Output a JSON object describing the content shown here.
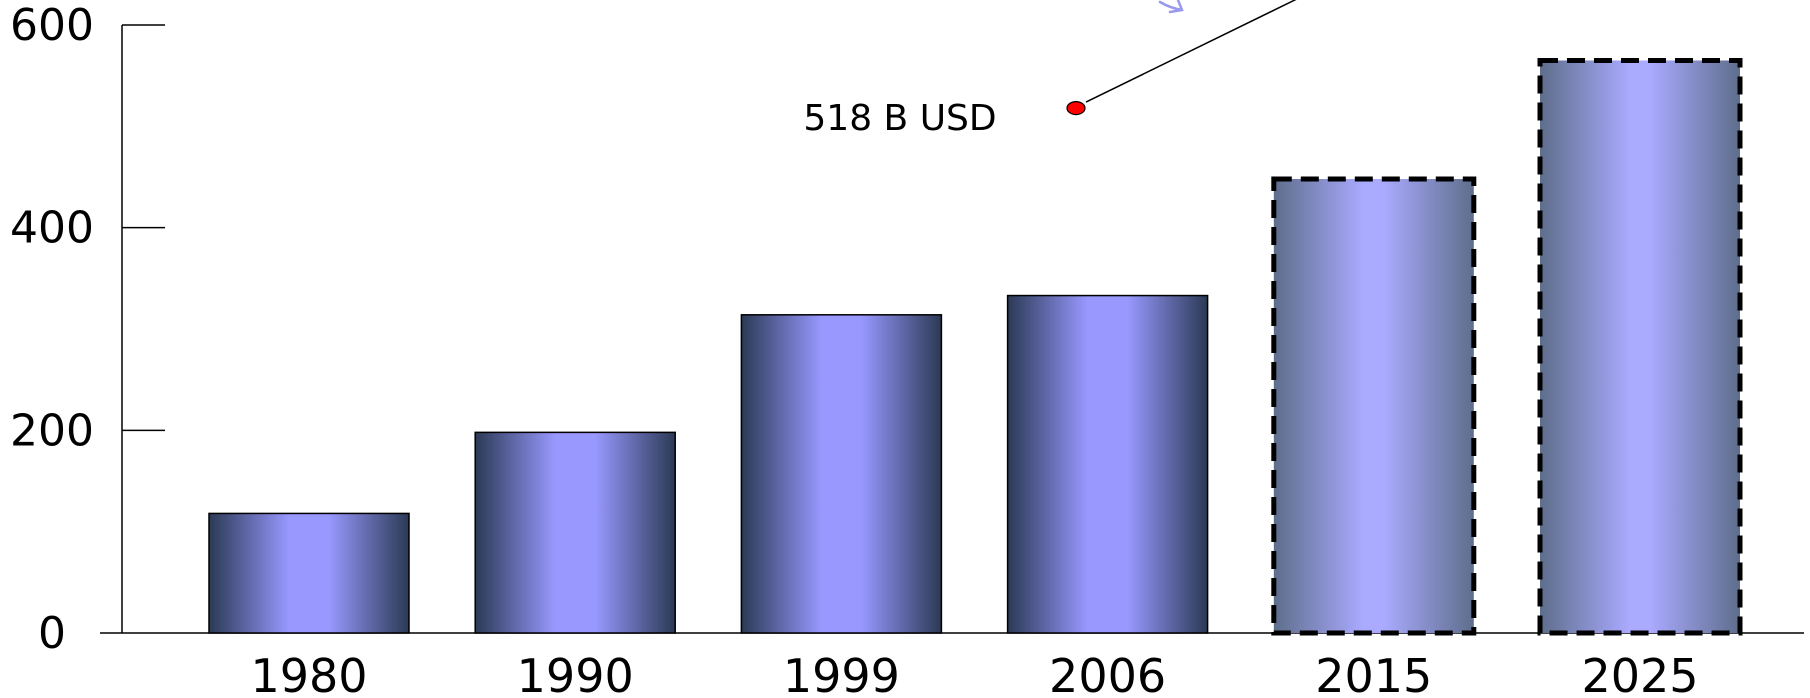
{
  "chart_data": {
    "type": "bar",
    "categories": [
      "1980",
      "1990",
      "1999",
      "2006",
      "2015",
      "2025"
    ],
    "values": [
      118,
      198,
      314,
      333,
      448,
      565
    ],
    "projected": [
      false,
      false,
      false,
      false,
      true,
      true
    ],
    "ylim": [
      0,
      600
    ],
    "yticks": [
      0,
      200,
      400,
      600
    ],
    "title": "",
    "xlabel": "",
    "ylabel": "",
    "grid": false,
    "annotation": {
      "text": "518 B USD",
      "value": 518
    },
    "colors": {
      "actual_center": "#9898FF",
      "actual_edge": "#2B3A55",
      "projected_center": "#AAAAFF",
      "projected_edge": "#5E6E8C",
      "marker": "#FF0000",
      "arrow": "#9999EE"
    }
  }
}
